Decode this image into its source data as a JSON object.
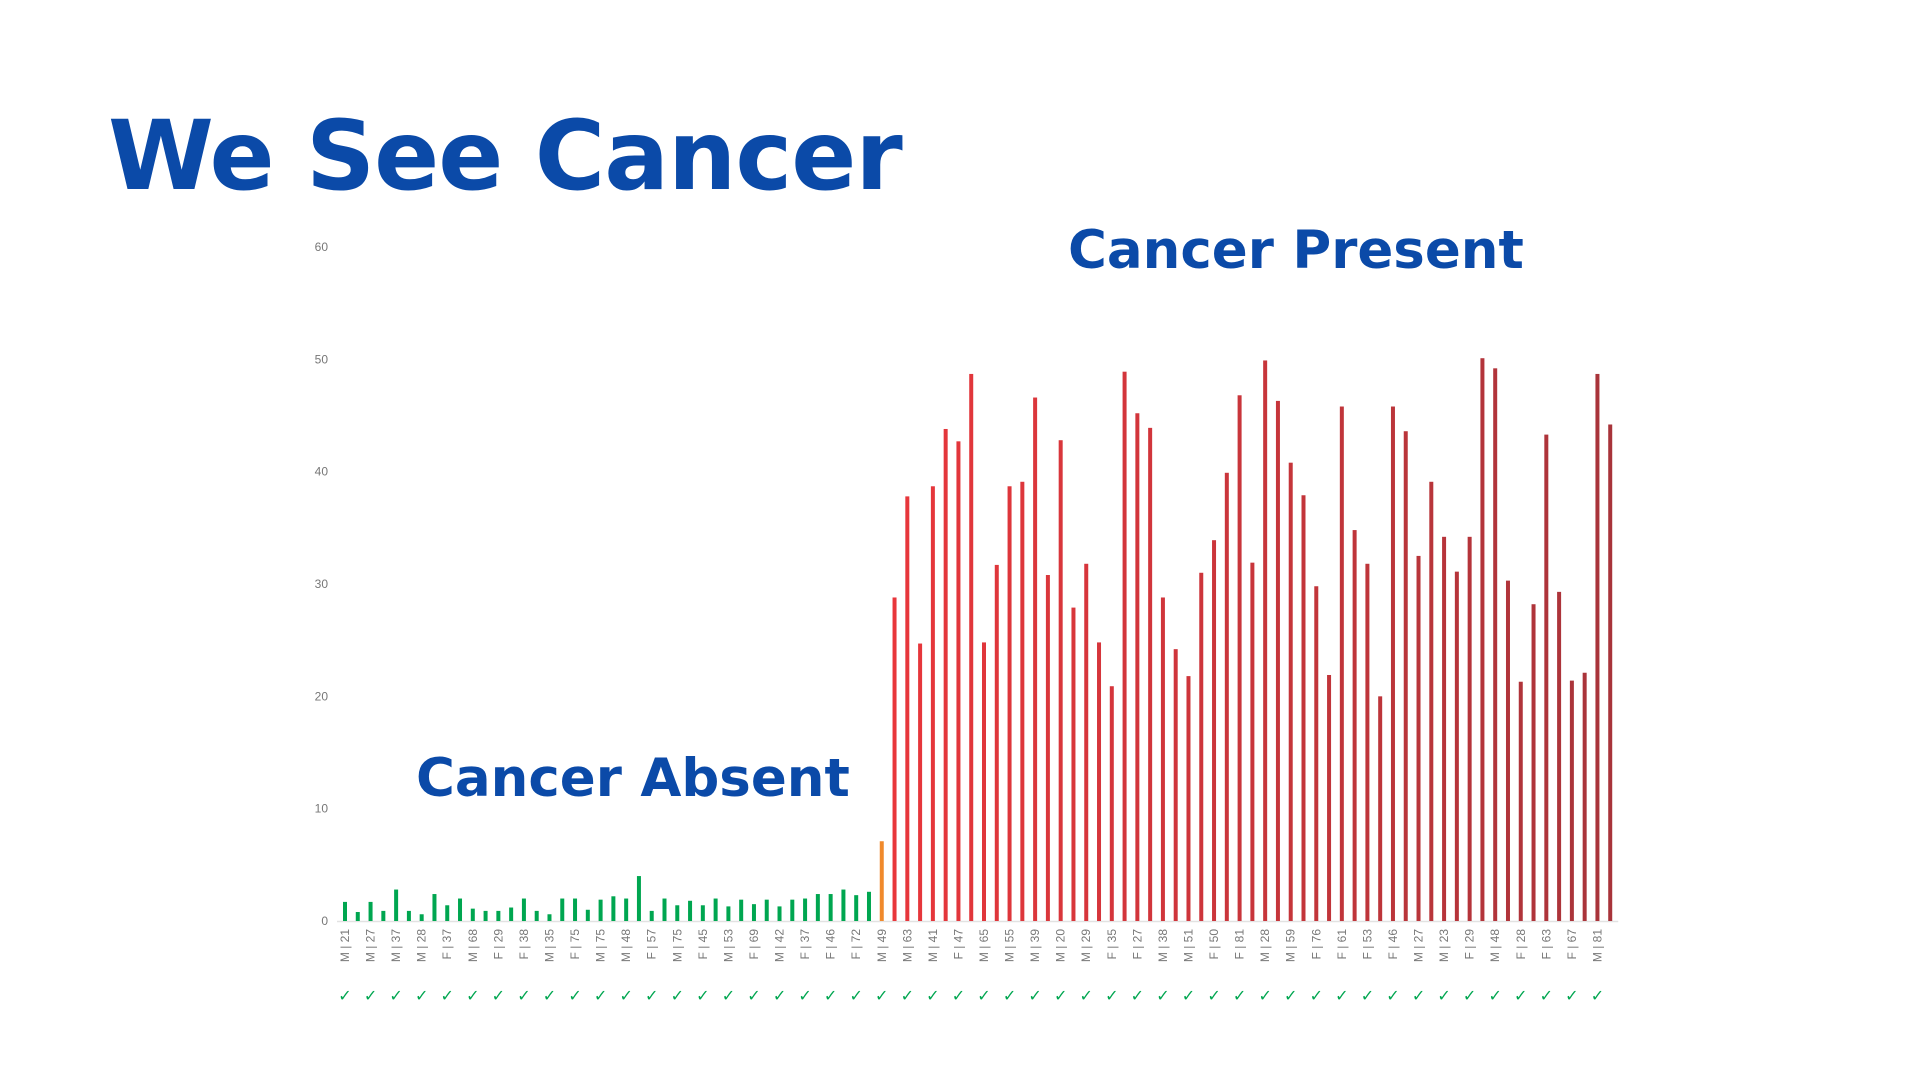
{
  "title": "We See Cancer",
  "chart_data": {
    "type": "bar",
    "title": "",
    "xlabel": "",
    "ylabel": "",
    "ylim": [
      0,
      60
    ],
    "yticks": [
      0,
      10,
      20,
      30,
      40,
      50,
      60
    ],
    "grid": false,
    "annotations": [
      "Cancer Present",
      "Cancer Absent"
    ],
    "tick_labels": [
      "M | 21",
      "M | 27",
      "M | 37",
      "M | 28",
      "F | 37",
      "M | 68",
      "F | 29",
      "F | 38",
      "M | 35",
      "F | 75",
      "M | 75",
      "M | 48",
      "F | 57",
      "M | 75",
      "F | 45",
      "M | 53",
      "F | 69",
      "M | 42",
      "F | 37",
      "F | 46",
      "F | 72",
      "M | 49",
      "M | 63",
      "M | 41",
      "F | 47",
      "M | 65",
      "M | 55",
      "M | 39",
      "M | 20",
      "M | 29",
      "F | 35",
      "F | 27",
      "M | 38",
      "M | 51",
      "F | 50",
      "F | 81",
      "M | 28",
      "M | 59",
      "F | 76",
      "F | 61",
      "F | 53",
      "F | 46",
      "M | 27",
      "M | 23",
      "F | 29",
      "M | 48",
      "F | 28",
      "F | 63",
      "F | 67",
      "M | 81"
    ],
    "check_mark": "✓",
    "values": [
      1.7,
      0.8,
      1.7,
      0.9,
      2.8,
      0.9,
      0.6,
      2.4,
      1.4,
      2.0,
      1.1,
      0.9,
      0.9,
      1.2,
      2.0,
      0.9,
      0.6,
      2.0,
      2.0,
      1.0,
      1.9,
      2.2,
      2.0,
      4.0,
      0.9,
      2.0,
      1.4,
      1.8,
      1.4,
      2.0,
      1.3,
      1.9,
      1.5,
      1.9,
      1.3,
      1.9,
      2.0,
      2.4,
      2.4,
      2.8,
      2.3,
      2.6,
      7.1,
      28.8,
      37.8,
      24.7,
      38.7,
      43.8,
      42.7,
      48.7,
      24.8,
      31.7,
      38.7,
      39.1,
      46.6,
      30.8,
      42.8,
      27.9,
      31.8,
      24.8,
      20.9,
      48.9,
      45.2,
      43.9,
      28.8,
      24.2,
      21.8,
      31.0,
      33.9,
      39.9,
      46.8,
      31.9,
      49.9,
      46.3,
      40.8,
      37.9,
      29.8,
      21.9,
      45.8,
      34.8,
      31.8,
      20.0,
      45.8,
      43.6,
      32.5,
      39.1,
      34.2,
      31.1,
      34.2,
      50.1,
      49.2,
      30.3,
      21.3,
      28.2,
      43.3,
      29.3,
      21.4,
      22.1,
      48.7,
      44.2
    ],
    "groups": {
      "absent_count": 42,
      "borderline_count": 1
    },
    "colors": {
      "absent": "#00a650",
      "borderline": "#f08a2c",
      "present_start": "#e8363b",
      "present_end": "#a8343a",
      "axis_text": "#777777",
      "check": "#00a650"
    }
  }
}
